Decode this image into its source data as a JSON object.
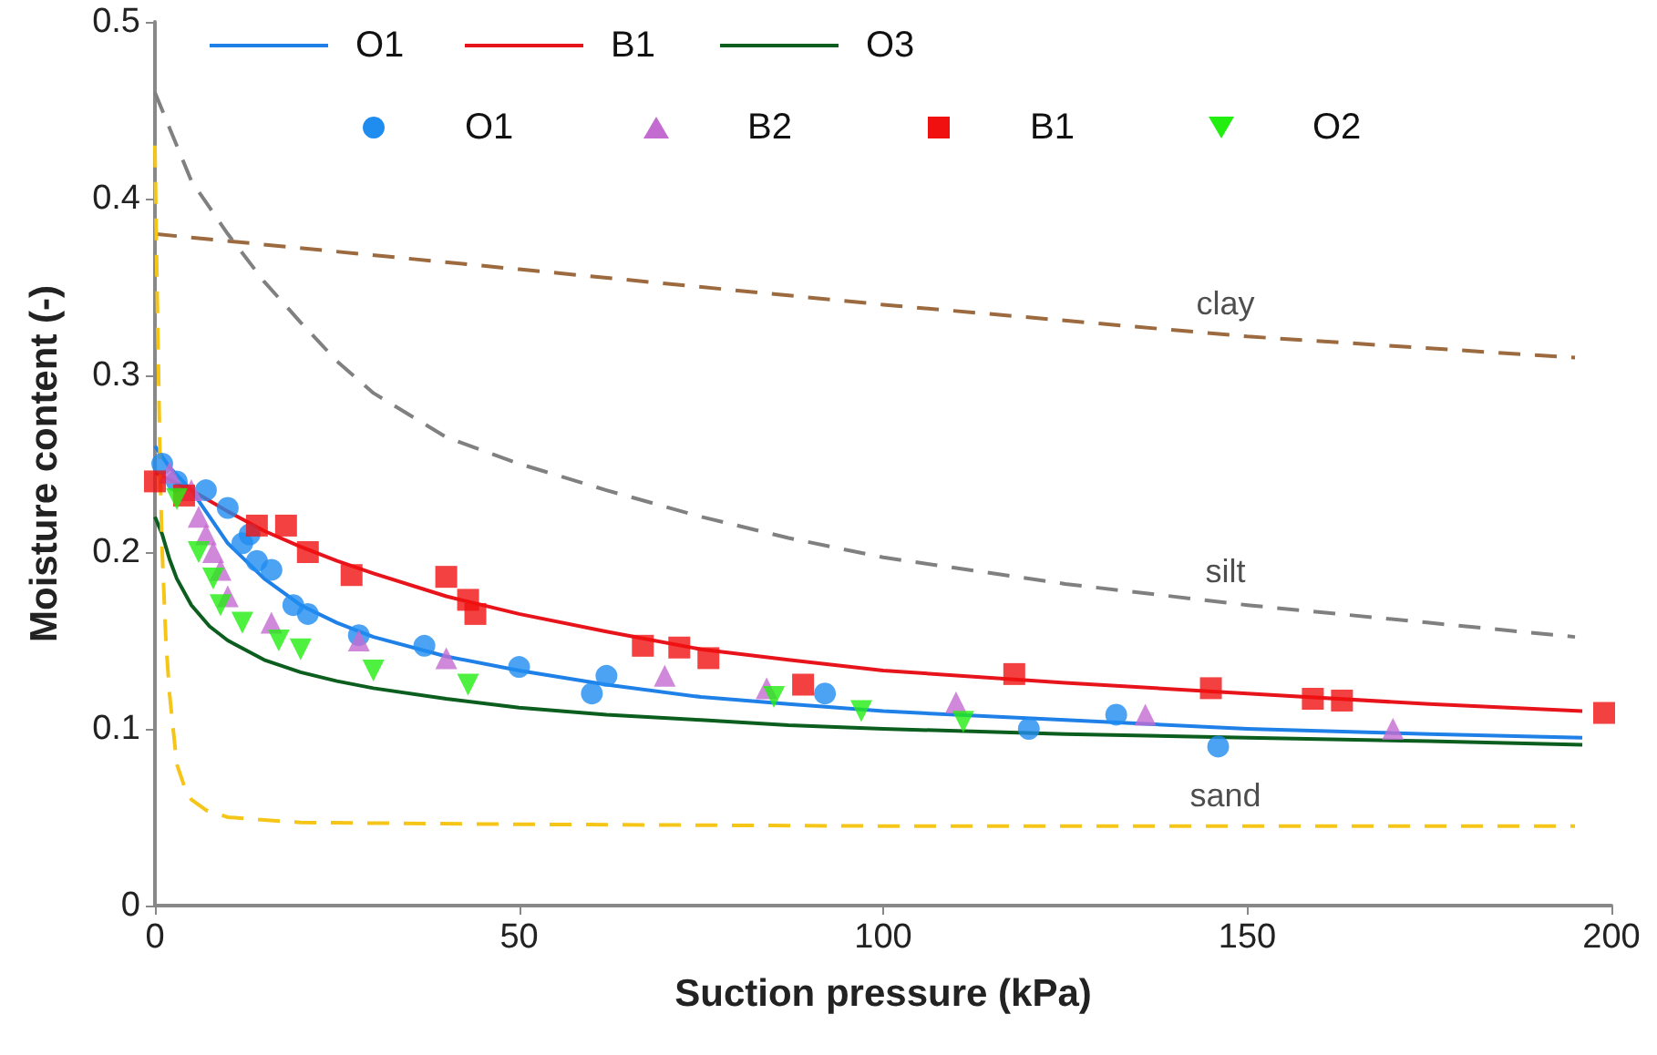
{
  "chart_data": {
    "type": "line",
    "xlabel": "Suction pressure (kPa)",
    "ylabel": "Moisture content (-)",
    "xlim": [
      0,
      200
    ],
    "ylim": [
      0,
      0.5
    ],
    "xticks": [
      0,
      50,
      100,
      150,
      200
    ],
    "yticks": [
      0,
      0.1,
      0.2,
      0.3,
      0.4,
      0.5
    ],
    "grid": false,
    "legend": "top",
    "series": [
      {
        "name": "O1",
        "color": "#1f80e8",
        "marker": "none",
        "line_style": "solid",
        "x": [
          0,
          2,
          5,
          7.5,
          10,
          15,
          20,
          25,
          30,
          40,
          50,
          62,
          75,
          87,
          100,
          125,
          150,
          175,
          196
        ],
        "values": [
          0.26,
          0.248,
          0.235,
          0.22,
          0.205,
          0.185,
          0.17,
          0.16,
          0.152,
          0.141,
          0.133,
          0.125,
          0.118,
          0.114,
          0.11,
          0.105,
          0.1,
          0.097,
          0.095
        ]
      },
      {
        "name": "B1",
        "color": "#e8141c",
        "marker": "none",
        "line_style": "solid",
        "x": [
          0,
          5,
          10,
          15,
          20,
          25,
          30,
          40,
          50,
          62,
          75,
          87,
          100,
          125,
          150,
          175,
          196
        ],
        "values": [
          0.245,
          0.235,
          0.223,
          0.212,
          0.203,
          0.195,
          0.188,
          0.175,
          0.165,
          0.155,
          0.145,
          0.139,
          0.133,
          0.126,
          0.12,
          0.114,
          0.11
        ]
      },
      {
        "name": "O3",
        "color": "#0b5e1e",
        "marker": "none",
        "line_style": "solid",
        "x": [
          0,
          1,
          2,
          3,
          5,
          7.5,
          10,
          15,
          20,
          25,
          30,
          40,
          50,
          62,
          75,
          87,
          100,
          125,
          150,
          175,
          196
        ],
        "values": [
          0.22,
          0.21,
          0.196,
          0.185,
          0.17,
          0.158,
          0.15,
          0.139,
          0.132,
          0.127,
          0.123,
          0.117,
          0.112,
          0.108,
          0.105,
          0.102,
          0.1,
          0.097,
          0.095,
          0.093,
          0.091
        ]
      },
      {
        "name": "O1",
        "type": "scatter",
        "color": "#1f8cf0",
        "marker": "circle",
        "x": [
          1,
          3,
          7,
          10,
          12,
          13,
          14,
          16,
          19,
          21,
          28,
          37,
          50,
          60,
          62,
          92,
          120,
          132,
          146
        ],
        "values": [
          0.25,
          0.24,
          0.235,
          0.225,
          0.205,
          0.21,
          0.195,
          0.19,
          0.17,
          0.165,
          0.153,
          0.147,
          0.135,
          0.12,
          0.13,
          0.12,
          0.1,
          0.108,
          0.09
        ]
      },
      {
        "name": "B2",
        "type": "scatter",
        "color": "#c46bd1",
        "marker": "triangle",
        "x": [
          2,
          5,
          6,
          7,
          8,
          9,
          10,
          16,
          28,
          40,
          70,
          84,
          110,
          136,
          170
        ],
        "values": [
          0.245,
          0.235,
          0.22,
          0.21,
          0.2,
          0.19,
          0.175,
          0.16,
          0.15,
          0.14,
          0.13,
          0.123,
          0.115,
          0.108,
          0.1
        ]
      },
      {
        "name": "B1",
        "type": "scatter",
        "color": "#f01010",
        "marker": "square",
        "x": [
          0,
          4,
          14,
          18,
          21,
          27,
          40,
          43,
          44,
          67,
          72,
          76,
          89,
          118,
          145,
          159,
          163,
          199
        ],
        "values": [
          0.24,
          0.232,
          0.215,
          0.215,
          0.2,
          0.187,
          0.186,
          0.173,
          0.165,
          0.147,
          0.146,
          0.14,
          0.125,
          0.131,
          0.123,
          0.117,
          0.116,
          0.109
        ]
      },
      {
        "name": "O2",
        "type": "scatter",
        "color": "#22ee10",
        "marker": "triangle-down",
        "x": [
          3,
          6,
          8,
          9,
          12,
          17,
          20,
          30,
          43,
          85,
          97,
          111
        ],
        "values": [
          0.23,
          0.2,
          0.185,
          0.17,
          0.16,
          0.15,
          0.145,
          0.133,
          0.125,
          0.118,
          0.11,
          0.104
        ]
      },
      {
        "color": "#9c6a3e",
        "marker": "none",
        "line_style": "dashed",
        "x": [
          0,
          50,
          100,
          150,
          195
        ],
        "values": [
          0.38,
          0.36,
          0.34,
          0.322,
          0.31
        ]
      },
      {
        "color": "#808080",
        "marker": "none",
        "line_style": "dashed",
        "x": [
          0,
          2,
          5,
          7.5,
          10,
          15,
          20,
          25,
          30,
          40,
          50,
          62,
          75,
          87,
          100,
          125,
          150,
          175,
          195
        ],
        "values": [
          0.46,
          0.44,
          0.41,
          0.395,
          0.38,
          0.353,
          0.33,
          0.308,
          0.29,
          0.265,
          0.25,
          0.235,
          0.22,
          0.208,
          0.197,
          0.182,
          0.17,
          0.16,
          0.152
        ]
      },
      {
        "color": "#f5c518",
        "marker": "none",
        "line_style": "dashed",
        "x": [
          0,
          0.25,
          0.5,
          0.75,
          1,
          1.5,
          2,
          3,
          4,
          5,
          7,
          10,
          20,
          50,
          100,
          195
        ],
        "values": [
          0.43,
          0.36,
          0.3,
          0.24,
          0.2,
          0.15,
          0.12,
          0.08,
          0.068,
          0.06,
          0.054,
          0.05,
          0.047,
          0.046,
          0.045,
          0.045
        ]
      }
    ],
    "annotations": [
      "clay",
      "silt",
      "sand"
    ]
  }
}
